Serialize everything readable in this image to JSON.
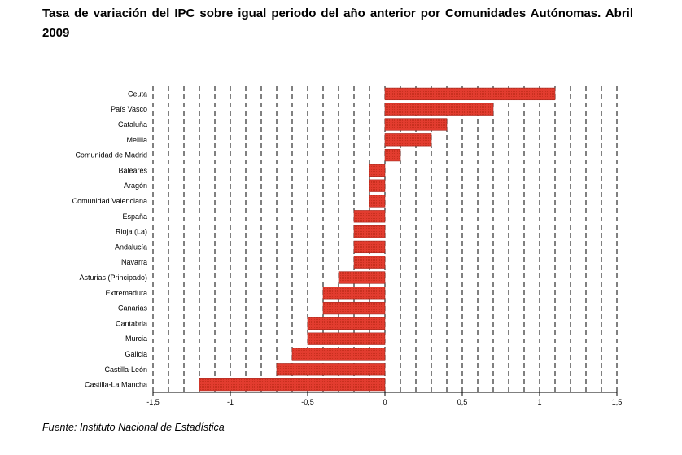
{
  "title": "Tasa de variación del IPC sobre igual periodo del año anterior por Comunidades Autónomas. Abril 2009",
  "source": "Fuente: Instituto Nacional de Estadística",
  "chart_data": {
    "type": "bar",
    "orientation": "horizontal",
    "categories": [
      "Ceuta",
      "País Vasco",
      "Cataluña",
      "Melilla",
      "Comunidad de Madrid",
      "Baleares",
      "Aragón",
      "Comunidad Valenciana",
      "España",
      "Rioja (La)",
      "Andalucía",
      "Navarra",
      "Asturias (Principado)",
      "Extremadura",
      "Canarias",
      "Cantabria",
      "Murcia",
      "Galicia",
      "Castilla-León",
      "Castilla-La Mancha"
    ],
    "values": [
      1.1,
      0.7,
      0.4,
      0.3,
      0.1,
      -0.1,
      -0.1,
      -0.1,
      -0.2,
      -0.2,
      -0.2,
      -0.2,
      -0.3,
      -0.4,
      -0.4,
      -0.5,
      -0.5,
      -0.6,
      -0.7,
      -1.2
    ],
    "xlim": [
      -1.5,
      1.5
    ],
    "xticks": [
      -1.5,
      -1,
      -0.5,
      0,
      0.5,
      1,
      1.5
    ],
    "xtick_labels": [
      "-1,5",
      "-1",
      "-0,5",
      "0",
      "0,5",
      "1",
      "1,5"
    ],
    "grid": "vertical dashed every 0.1",
    "legend": "none",
    "bar_color": "#e03c2e",
    "bar_edge_color": "#a5281f"
  }
}
